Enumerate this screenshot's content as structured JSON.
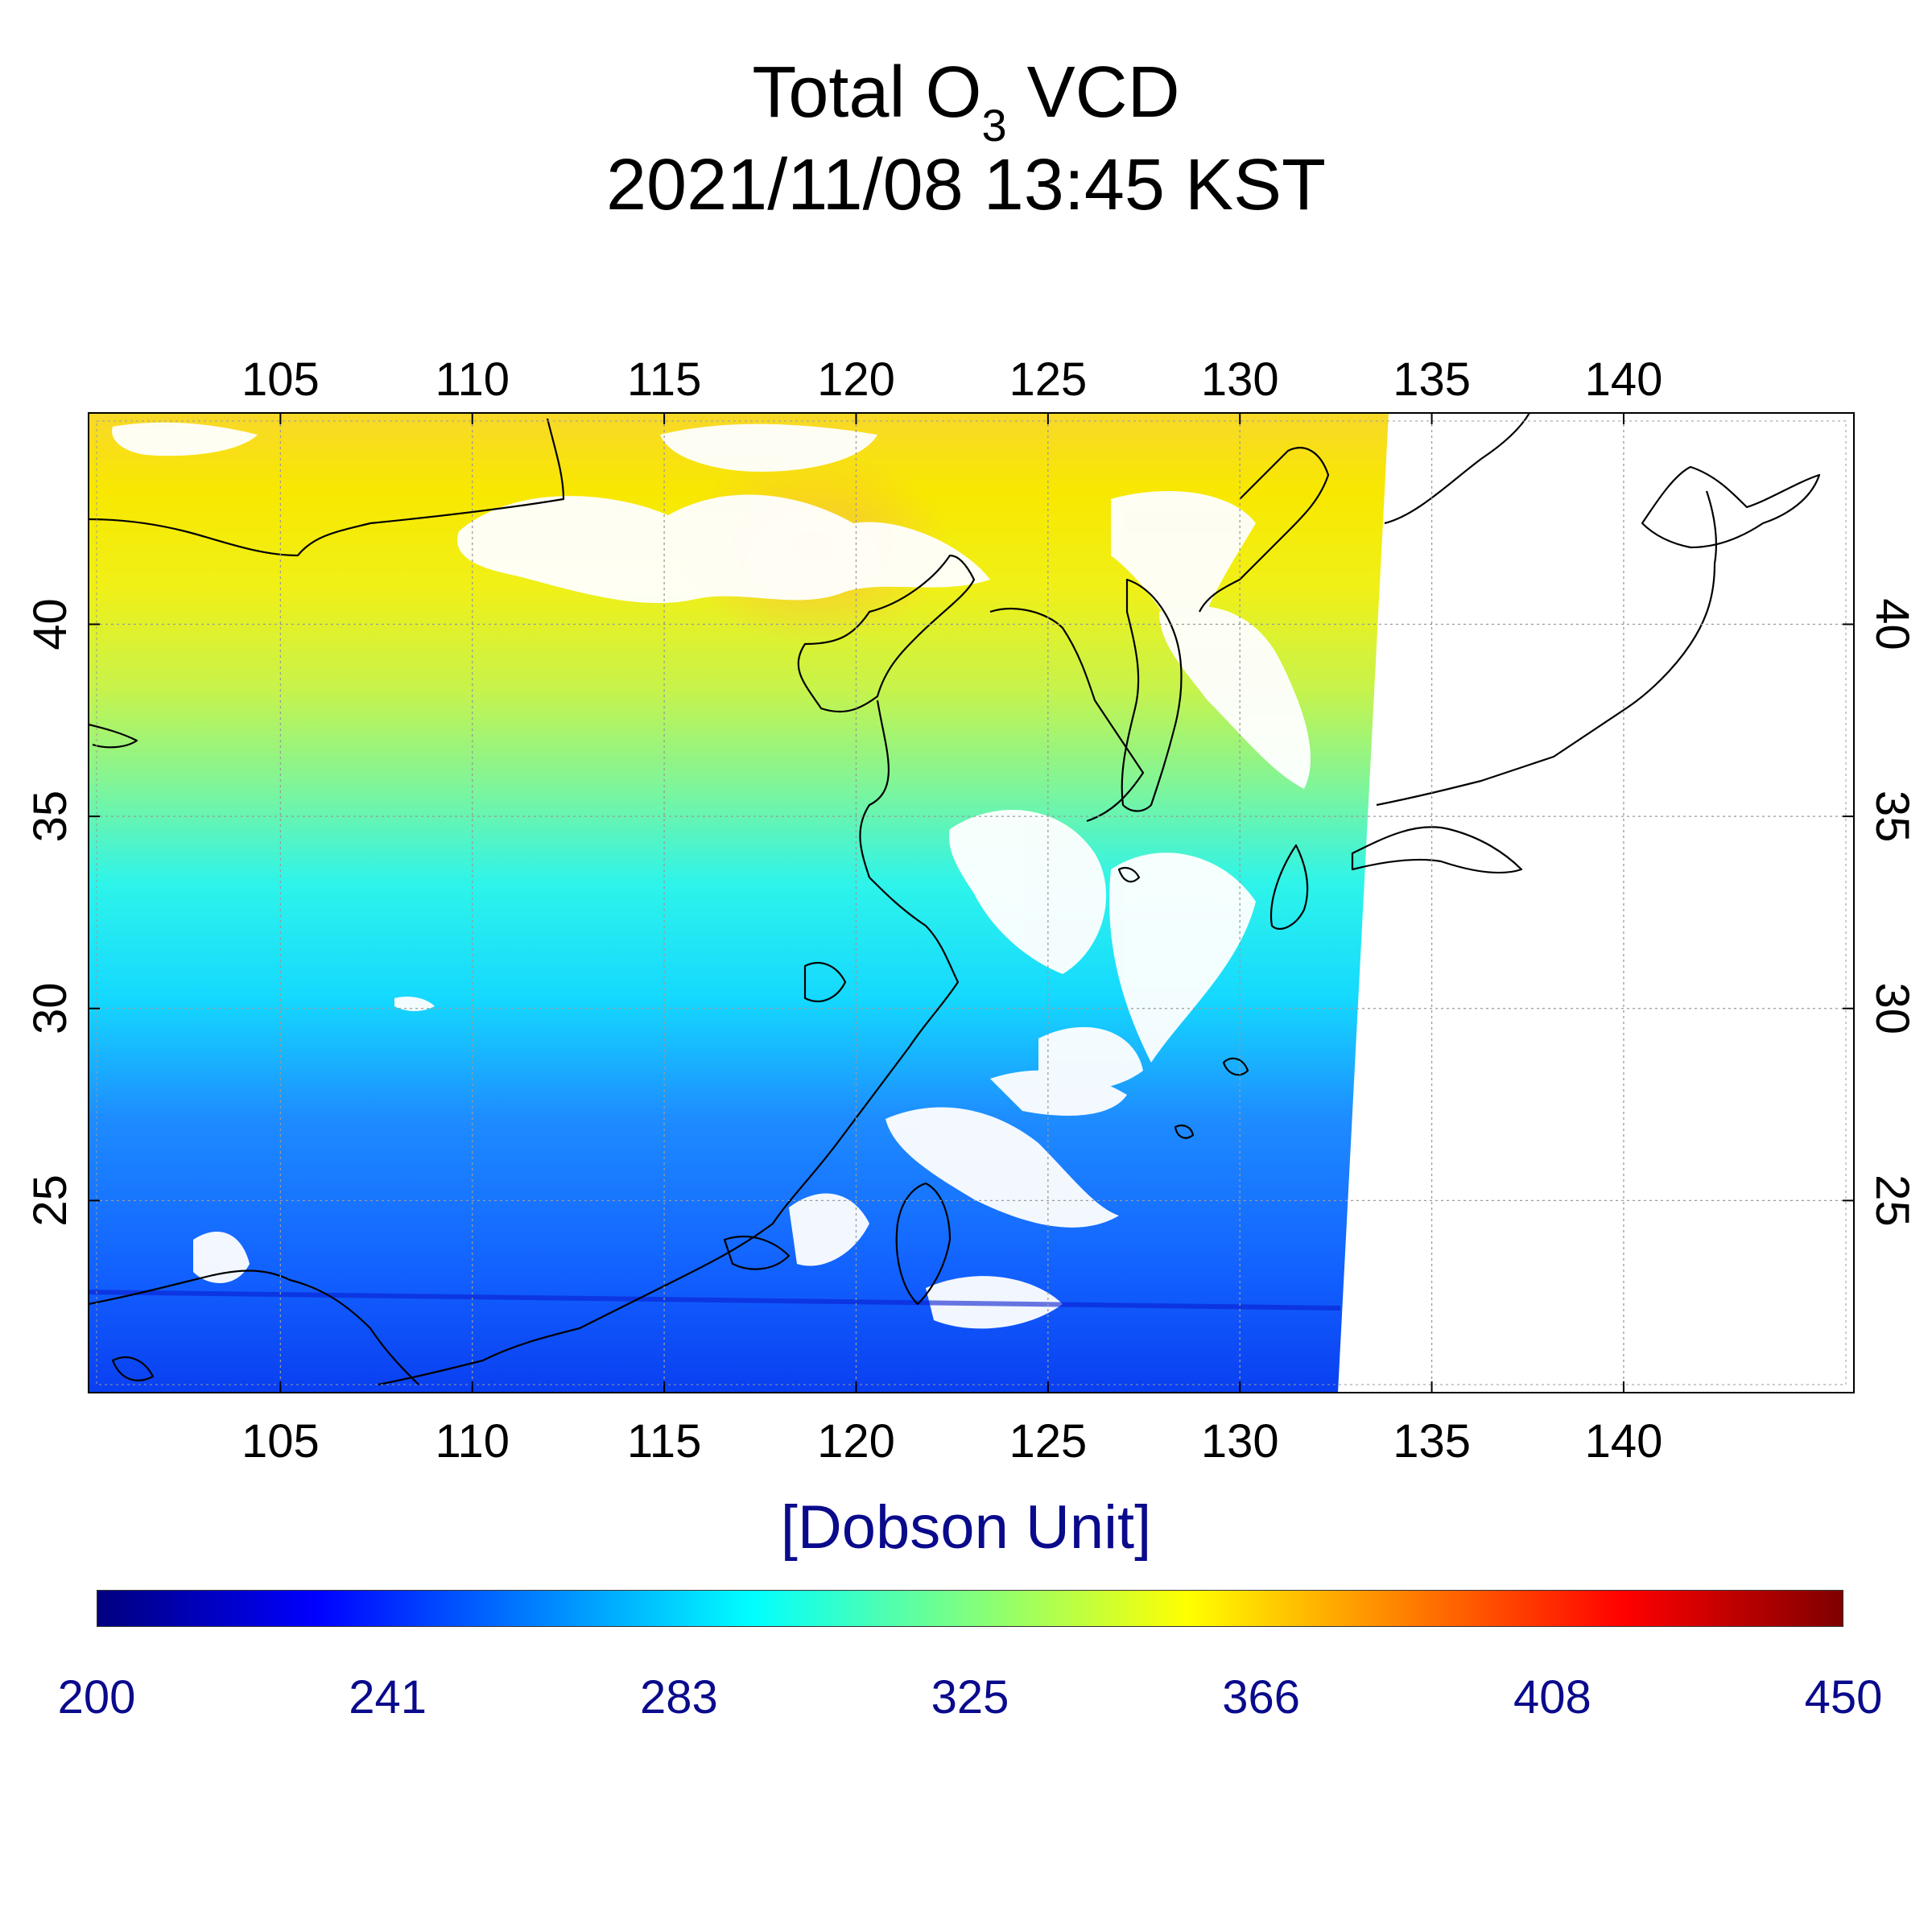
{
  "title": {
    "line1_prefix": "Total O",
    "line1_subscript": "3",
    "line1_suffix": " VCD",
    "line2": "2021/11/08 13:45 KST"
  },
  "map": {
    "lon_range": [
      100,
      146
    ],
    "lat_range": [
      20,
      45.5
    ],
    "lon_ticks": [
      105,
      110,
      115,
      120,
      125,
      130,
      135,
      140
    ],
    "lat_ticks": [
      25,
      30,
      35,
      40
    ],
    "grid": true,
    "colors": {
      "frame": "#000000",
      "grid": "#9a9a9a",
      "coast": "#000000",
      "cloud": "#ffffff",
      "no_data": "#ffffff"
    }
  },
  "colorbar": {
    "unit_label": "[Dobson Unit]",
    "tick_labels": [
      "200",
      "241",
      "283",
      "325",
      "366",
      "408",
      "450"
    ],
    "range": [
      200,
      450
    ],
    "colormap": "jet",
    "colors": [
      "#00007f",
      "#0000ff",
      "#007fff",
      "#00ffff",
      "#7fff7f",
      "#ffff00",
      "#ff7f00",
      "#ff0000",
      "#7f0000"
    ]
  }
}
